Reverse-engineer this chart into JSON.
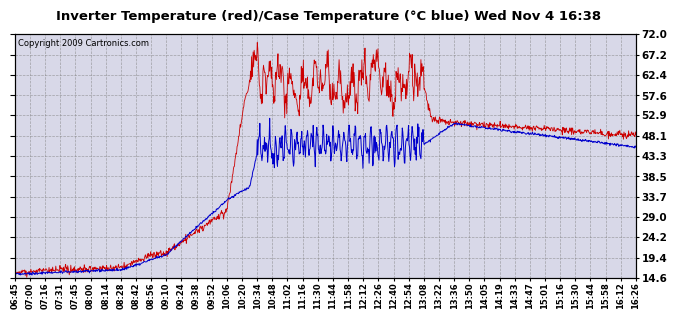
{
  "title": "Inverter Temperature (red)/Case Temperature (°C blue) Wed Nov 4 16:38",
  "copyright": "Copyright 2009 Cartronics.com",
  "ylabel_right_ticks": [
    14.6,
    19.4,
    24.2,
    29.0,
    33.7,
    38.5,
    43.3,
    48.1,
    52.9,
    57.6,
    62.4,
    67.2,
    72.0
  ],
  "ymin": 14.6,
  "ymax": 72.0,
  "background_color": "#ffffff",
  "plot_bg_color": "#d8d8e8",
  "grid_color": "#888888",
  "red_line_color": "#cc0000",
  "blue_line_color": "#0000cc",
  "x_labels": [
    "06:45",
    "07:00",
    "07:16",
    "07:31",
    "07:45",
    "08:00",
    "08:14",
    "08:28",
    "08:42",
    "08:56",
    "09:10",
    "09:24",
    "09:38",
    "09:52",
    "10:06",
    "10:20",
    "10:34",
    "10:48",
    "11:02",
    "11:16",
    "11:30",
    "11:44",
    "11:58",
    "12:12",
    "12:26",
    "12:40",
    "12:54",
    "13:08",
    "13:22",
    "13:36",
    "13:50",
    "14:05",
    "14:19",
    "14:33",
    "14:47",
    "15:01",
    "15:16",
    "15:30",
    "15:44",
    "15:58",
    "16:12",
    "16:26"
  ]
}
